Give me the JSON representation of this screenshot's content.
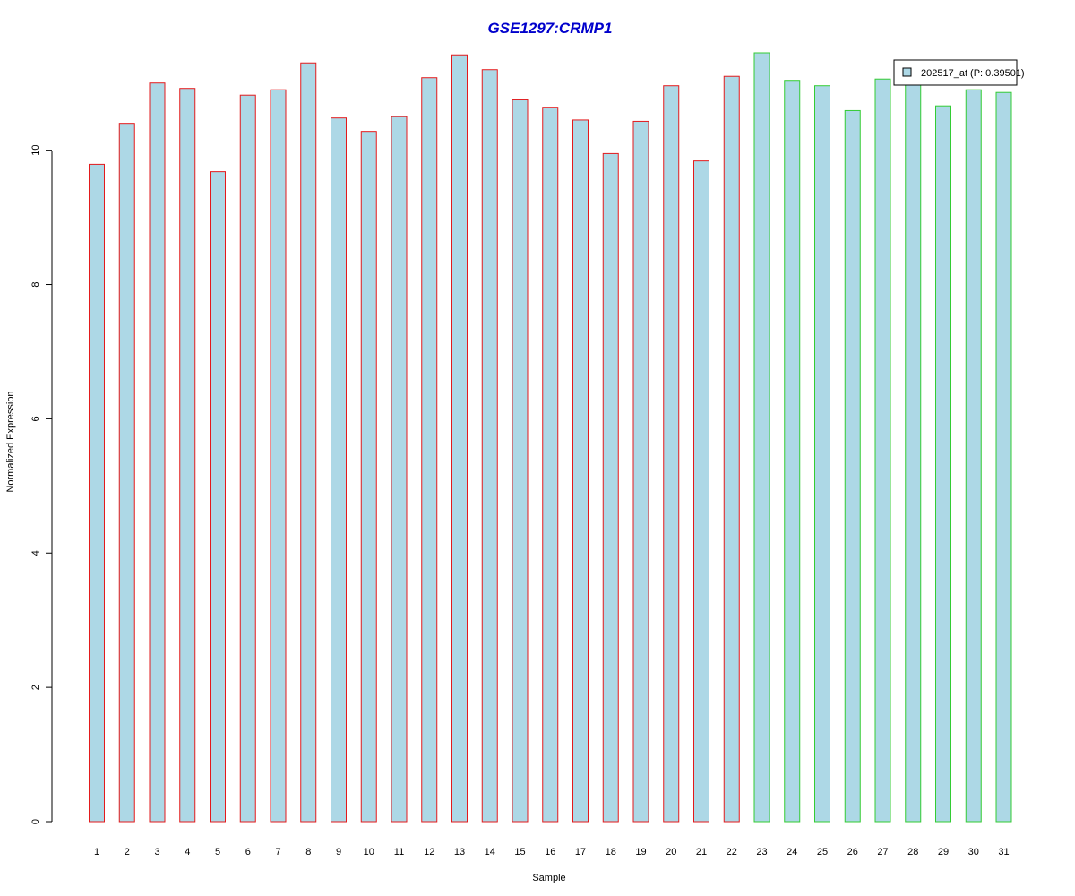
{
  "chart_data": {
    "type": "bar",
    "title": "GSE1297:CRMP1",
    "xlabel": "Sample",
    "ylabel": "Normalized Expression",
    "categories": [
      "1",
      "2",
      "3",
      "4",
      "5",
      "6",
      "7",
      "8",
      "9",
      "10",
      "11",
      "12",
      "13",
      "14",
      "15",
      "16",
      "17",
      "18",
      "19",
      "20",
      "21",
      "22",
      "23",
      "24",
      "25",
      "26",
      "27",
      "28",
      "29",
      "30",
      "31"
    ],
    "values": [
      9.79,
      10.4,
      11.0,
      10.92,
      9.68,
      10.82,
      10.9,
      11.3,
      10.48,
      10.28,
      10.5,
      11.08,
      11.42,
      11.2,
      10.75,
      10.64,
      10.45,
      9.95,
      10.43,
      10.96,
      9.84,
      11.1,
      11.45,
      11.04,
      10.96,
      10.59,
      11.06,
      11.0,
      10.66,
      10.9,
      10.86
    ],
    "outline_colors": [
      "#e31a1c",
      "#e31a1c",
      "#e31a1c",
      "#e31a1c",
      "#e31a1c",
      "#e31a1c",
      "#e31a1c",
      "#e31a1c",
      "#e31a1c",
      "#e31a1c",
      "#e31a1c",
      "#e31a1c",
      "#e31a1c",
      "#e31a1c",
      "#e31a1c",
      "#e31a1c",
      "#e31a1c",
      "#e31a1c",
      "#e31a1c",
      "#e31a1c",
      "#e31a1c",
      "#e31a1c",
      "#33cc33",
      "#33cc33",
      "#33cc33",
      "#33cc33",
      "#33cc33",
      "#33cc33",
      "#33cc33",
      "#33cc33",
      "#33cc33"
    ],
    "y_ticks": [
      0,
      2,
      4,
      6,
      8,
      10
    ],
    "ylim": [
      0,
      11.45
    ],
    "legend": {
      "label": "202517_at (P: 0.39501)",
      "position": "top-right"
    },
    "colors": {
      "title": "#0000cc",
      "bar_fill": "#add8e6",
      "group1_outline": "#e31a1c",
      "group2_outline": "#33cc33"
    },
    "grid": false
  }
}
